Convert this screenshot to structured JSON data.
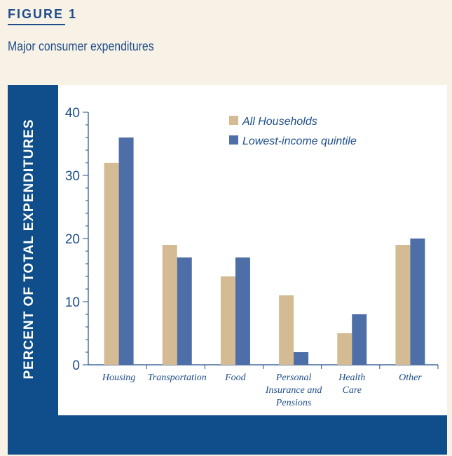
{
  "figure_label": "FIGURE 1",
  "figure_title": "Major consumer expenditures",
  "colors": {
    "series_all": "#d5bb93",
    "series_low": "#4d6ea6",
    "axis": "#1f4e8a",
    "panel": "#0f4e8b"
  },
  "chart_data": {
    "type": "bar",
    "ylabel": "PERCENT OF TOTAL EXPENDITURES",
    "ylim": [
      0,
      40
    ],
    "yticks": [
      0,
      10,
      20,
      30,
      40
    ],
    "categories": [
      [
        "Housing"
      ],
      [
        "Transportation"
      ],
      [
        "Food"
      ],
      [
        "Personal",
        "Insurance and",
        "Pensions"
      ],
      [
        "Health",
        "Care"
      ],
      [
        "Other"
      ]
    ],
    "series": [
      {
        "name": "All Households",
        "values": [
          32,
          19,
          14,
          11,
          5,
          19
        ]
      },
      {
        "name": "Lowest-income quintile",
        "values": [
          36,
          17,
          17,
          2,
          8,
          20
        ]
      }
    ],
    "legend_position": "top-right",
    "grid": false
  }
}
